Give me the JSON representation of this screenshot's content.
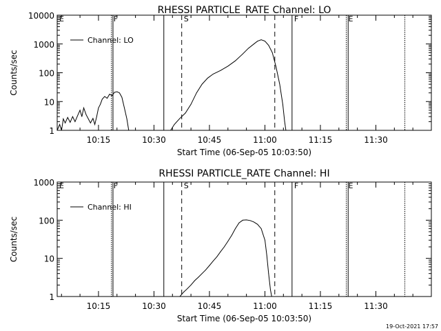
{
  "footer_date": "19-Oct-2021 17:57",
  "chart_data": [
    {
      "type": "line",
      "title": "RHESSI PARTICLE_RATE Channel: LO",
      "xlabel": "Start Time (06-Sep-05 10:03:50)",
      "ylabel": "Counts/sec",
      "yscale": "log",
      "ylim": [
        1,
        10000
      ],
      "xlim": [
        "10:03:50",
        "11:45:00"
      ],
      "legend": {
        "label": "Channel: LO",
        "placement": "top-left"
      },
      "yticks": [
        {
          "value": 1,
          "label": "1"
        },
        {
          "value": 10,
          "label": "10"
        },
        {
          "value": 100,
          "label": "100"
        },
        {
          "value": 1000,
          "label": "1000"
        },
        {
          "value": 10000,
          "label": "10000"
        }
      ],
      "xticks": [
        {
          "time": "10:15",
          "label": "10:15"
        },
        {
          "time": "10:30",
          "label": "10:30"
        },
        {
          "time": "10:45",
          "label": "10:45"
        },
        {
          "time": "11:00",
          "label": "11:00"
        },
        {
          "time": "11:15",
          "label": "11:15"
        },
        {
          "time": "11:30",
          "label": "11:30"
        }
      ],
      "markers": [
        {
          "time": "10:03:50",
          "style": "dotted",
          "label": "E"
        },
        {
          "time": "10:18:30",
          "style": "dotted",
          "label": "F"
        },
        {
          "time": "10:18:55",
          "style": "solid",
          "label": ""
        },
        {
          "time": "10:32:40",
          "style": "solid",
          "label": ""
        },
        {
          "time": "10:37:30",
          "style": "dashed",
          "label": "S"
        },
        {
          "time": "11:02:40",
          "style": "dashed",
          "label": ""
        },
        {
          "time": "11:07:20",
          "style": "solid",
          "label": "F"
        },
        {
          "time": "11:22:00",
          "style": "dotted",
          "label": "E"
        },
        {
          "time": "11:22:30",
          "style": "solid",
          "label": ""
        },
        {
          "time": "11:37:50",
          "style": "dotted",
          "label": ""
        }
      ],
      "series": [
        {
          "name": "Channel: LO",
          "segments": [
            [
              [
                "10:03:50",
                1.0
              ],
              [
                "10:04:30",
                1.6
              ],
              [
                "10:05:00",
                1.0
              ],
              [
                "10:05:30",
                2.5
              ],
              [
                "10:06:00",
                1.8
              ],
              [
                "10:06:40",
                2.8
              ],
              [
                "10:07:20",
                1.9
              ],
              [
                "10:08:00",
                3.0
              ],
              [
                "10:08:40",
                2.0
              ],
              [
                "10:09:20",
                3.2
              ],
              [
                "10:10:00",
                5.0
              ],
              [
                "10:10:30",
                3.0
              ],
              [
                "10:11:00",
                6.0
              ],
              [
                "10:11:40",
                3.5
              ],
              [
                "10:12:20",
                2.4
              ],
              [
                "10:12:50",
                1.8
              ],
              [
                "10:13:30",
                2.6
              ],
              [
                "10:14:00",
                1.6
              ],
              [
                "10:14:30",
                3.0
              ],
              [
                "10:15:00",
                6.0
              ],
              [
                "10:15:30",
                8.0
              ],
              [
                "10:16:00",
                12.0
              ],
              [
                "10:16:40",
                15.0
              ],
              [
                "10:17:20",
                13.0
              ],
              [
                "10:18:00",
                18.0
              ],
              [
                "10:18:40",
                16.0
              ],
              [
                "10:19:20",
                21.0
              ],
              [
                "10:20:00",
                22.0
              ],
              [
                "10:20:40",
                20.0
              ],
              [
                "10:21:20",
                14.0
              ],
              [
                "10:22:00",
                6.0
              ],
              [
                "10:22:40",
                2.5
              ],
              [
                "10:23:10",
                1.0
              ]
            ],
            [
              [
                "10:34:30",
                1.0
              ],
              [
                "10:35:30",
                1.6
              ],
              [
                "10:37:00",
                2.6
              ],
              [
                "10:38:30",
                4.0
              ],
              [
                "10:40:00",
                8.0
              ],
              [
                "10:41:30",
                20.0
              ],
              [
                "10:43:00",
                40.0
              ],
              [
                "10:44:30",
                65.0
              ],
              [
                "10:46:00",
                90.0
              ],
              [
                "10:48:00",
                120.0
              ],
              [
                "10:50:00",
                170.0
              ],
              [
                "10:52:00",
                260.0
              ],
              [
                "10:54:00",
                450.0
              ],
              [
                "10:55:30",
                700.0
              ],
              [
                "10:57:00",
                1000.0
              ],
              [
                "10:58:00",
                1250.0
              ],
              [
                "10:59:00",
                1400.0
              ],
              [
                "11:00:00",
                1250.0
              ],
              [
                "11:01:00",
                900.0
              ],
              [
                "11:02:00",
                500.0
              ],
              [
                "11:03:00",
                160.0
              ],
              [
                "11:04:00",
                40.0
              ],
              [
                "11:04:50",
                8.0
              ],
              [
                "11:05:20",
                2.0
              ],
              [
                "11:05:40",
                1.0
              ]
            ]
          ]
        }
      ]
    },
    {
      "type": "line",
      "title": "RHESSI PARTICLE_RATE Channel: HI",
      "xlabel": "Start Time (06-Sep-05 10:03:50)",
      "ylabel": "Counts/sec",
      "yscale": "log",
      "ylim": [
        1,
        1000
      ],
      "xlim": [
        "10:03:50",
        "11:45:00"
      ],
      "legend": {
        "label": "Channel: HI",
        "placement": "top-left"
      },
      "yticks": [
        {
          "value": 1,
          "label": "1"
        },
        {
          "value": 10,
          "label": "10"
        },
        {
          "value": 100,
          "label": "100"
        },
        {
          "value": 1000,
          "label": "1000"
        }
      ],
      "xticks": [
        {
          "time": "10:15",
          "label": "10:15"
        },
        {
          "time": "10:30",
          "label": "10:30"
        },
        {
          "time": "10:45",
          "label": "10:45"
        },
        {
          "time": "11:00",
          "label": "11:00"
        },
        {
          "time": "11:15",
          "label": "11:15"
        },
        {
          "time": "11:30",
          "label": "11:30"
        }
      ],
      "markers": [
        {
          "time": "10:03:50",
          "style": "dotted",
          "label": "E"
        },
        {
          "time": "10:18:30",
          "style": "dotted",
          "label": "F"
        },
        {
          "time": "10:18:55",
          "style": "solid",
          "label": ""
        },
        {
          "time": "10:32:40",
          "style": "solid",
          "label": ""
        },
        {
          "time": "10:37:30",
          "style": "dashed",
          "label": "S"
        },
        {
          "time": "11:02:40",
          "style": "dashed",
          "label": ""
        },
        {
          "time": "11:07:20",
          "style": "solid",
          "label": "F"
        },
        {
          "time": "11:22:00",
          "style": "dotted",
          "label": "E"
        },
        {
          "time": "11:22:30",
          "style": "solid",
          "label": ""
        },
        {
          "time": "11:37:50",
          "style": "dotted",
          "label": ""
        }
      ],
      "series": [
        {
          "name": "Channel: HI",
          "segments": [
            [
              [
                "10:37:00",
                1.0
              ],
              [
                "10:38:00",
                1.3
              ],
              [
                "10:39:00",
                1.6
              ],
              [
                "10:40:00",
                2.0
              ],
              [
                "10:41:00",
                2.6
              ],
              [
                "10:42:00",
                3.2
              ],
              [
                "10:43:00",
                4.0
              ],
              [
                "10:44:00",
                5.0
              ],
              [
                "10:45:00",
                6.5
              ],
              [
                "10:46:00",
                8.5
              ],
              [
                "10:47:00",
                11.0
              ],
              [
                "10:48:00",
                15.0
              ],
              [
                "10:49:00",
                20.0
              ],
              [
                "10:50:00",
                28.0
              ],
              [
                "10:51:00",
                40.0
              ],
              [
                "10:52:00",
                60.0
              ],
              [
                "10:53:00",
                85.0
              ],
              [
                "10:54:00",
                100.0
              ],
              [
                "10:55:00",
                102.0
              ],
              [
                "10:56:00",
                98.0
              ],
              [
                "10:57:00",
                90.0
              ],
              [
                "10:58:00",
                78.0
              ],
              [
                "10:59:00",
                60.0
              ],
              [
                "11:00:00",
                30.0
              ],
              [
                "11:00:30",
                12.0
              ],
              [
                "11:01:00",
                4.0
              ],
              [
                "11:01:30",
                1.5
              ],
              [
                "11:01:50",
                1.0
              ]
            ]
          ]
        }
      ]
    }
  ]
}
